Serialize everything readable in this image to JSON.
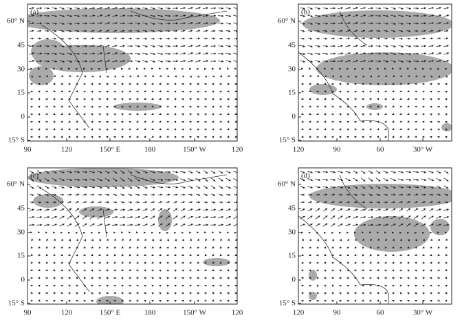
{
  "panels": [
    {
      "label": "(a)",
      "y_labels": [
        "60° N",
        "45",
        "30",
        "15",
        "0",
        "15° S"
      ],
      "x_labels": [
        "90",
        "120",
        "150° E",
        "180",
        "150° W",
        "120"
      ]
    },
    {
      "label": "(b)",
      "y_labels": [
        "60° N",
        "45",
        "30",
        "15",
        "0",
        "15° S"
      ],
      "x_labels": [
        "120",
        "90",
        "60",
        "30° W"
      ]
    },
    {
      "label": "(c)",
      "y_labels": [
        "60° N",
        "45",
        "30",
        "15",
        "0",
        "15° S"
      ],
      "x_labels": [
        "90",
        "120",
        "150° E",
        "180",
        "150° W",
        "120"
      ]
    },
    {
      "label": "(d)",
      "y_labels": [
        "60° N",
        "45",
        "30",
        "15",
        "0",
        "15° S"
      ],
      "x_labels": [
        "120",
        "90",
        "60",
        "30° W"
      ]
    }
  ]
}
